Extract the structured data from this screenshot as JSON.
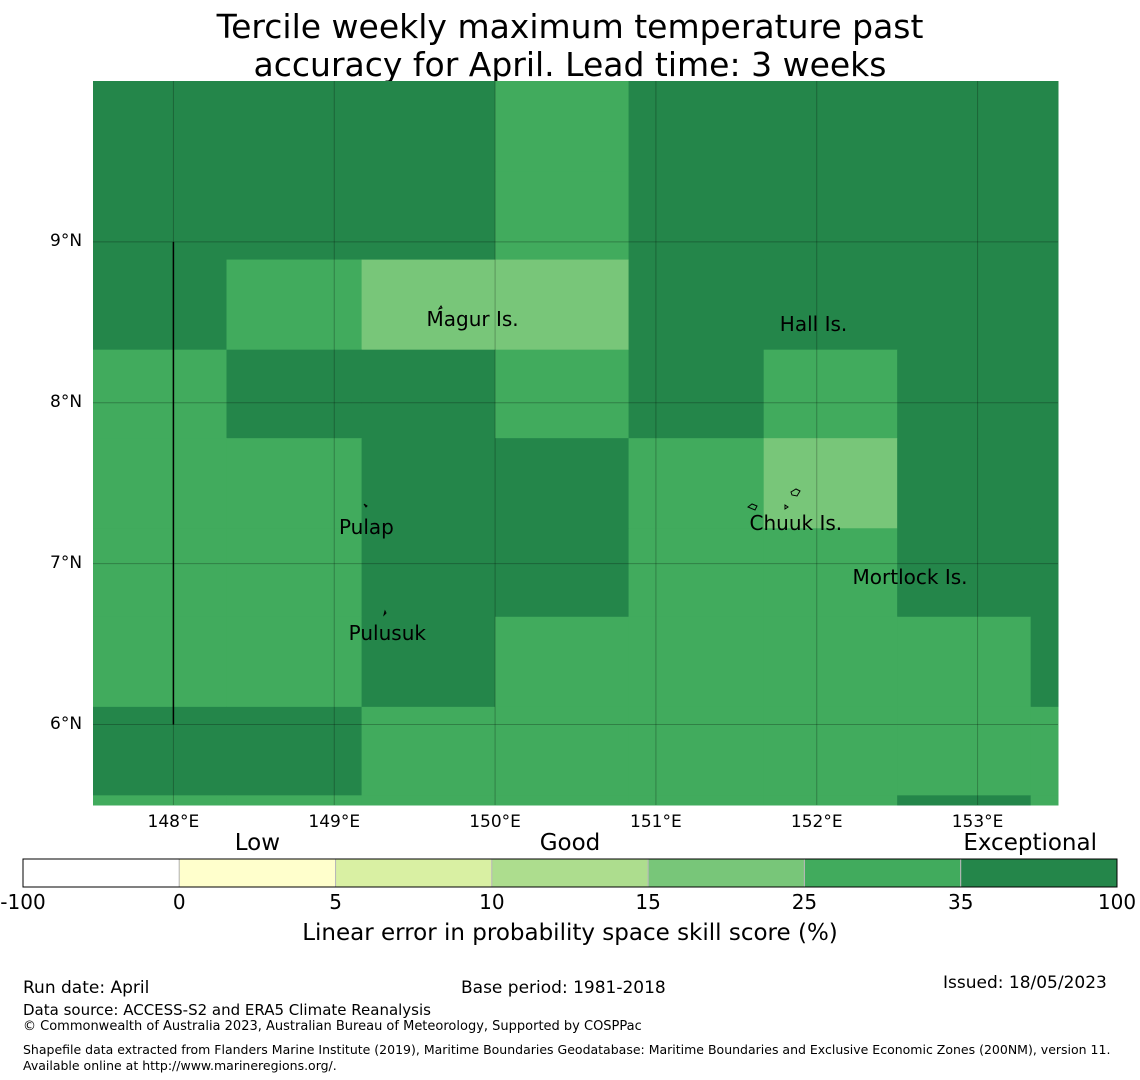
{
  "title": {
    "line1": "Tercile weekly maximum temperature past",
    "line2": "accuracy for April. Lead time: 3 weeks"
  },
  "colors": {
    "exceptional": "#24864a",
    "very_good": "#41ab5d",
    "good": "#78c679",
    "fair": "#addd8e",
    "low_good": "#d9f0a3",
    "low": "#ffffcc",
    "none": "#ffffff"
  },
  "map": {
    "lon_range": [
      147.5,
      153.5
    ],
    "lat_range": [
      5.5,
      10.0
    ],
    "lat_ticks": [
      {
        "value": 9,
        "label": "9°N"
      },
      {
        "value": 8,
        "label": "8°N"
      },
      {
        "value": 7,
        "label": "7°N"
      },
      {
        "value": 6,
        "label": "6°N"
      }
    ],
    "lon_ticks": [
      {
        "value": 148,
        "label": "148°E"
      },
      {
        "value": 149,
        "label": "149°E"
      },
      {
        "value": 150,
        "label": "150°E"
      },
      {
        "value": 151,
        "label": "151°E"
      },
      {
        "value": 152,
        "label": "152°E"
      },
      {
        "value": 153,
        "label": "153°E"
      }
    ],
    "cell_lon_edges": [
      147.5,
      148.33,
      149.17,
      150.0,
      150.83,
      151.67,
      152.5,
      153.33,
      153.5
    ],
    "cell_lat_edges": [
      10.0,
      9.44,
      8.89,
      8.33,
      7.78,
      7.22,
      6.67,
      6.11,
      5.56,
      5.5
    ],
    "skill_class_grid": [
      [
        "exceptional",
        "exceptional",
        "exceptional",
        "very_good",
        "exceptional",
        "exceptional",
        "exceptional",
        "exceptional"
      ],
      [
        "exceptional",
        "exceptional",
        "exceptional",
        "very_good",
        "exceptional",
        "exceptional",
        "exceptional",
        "exceptional"
      ],
      [
        "exceptional",
        "very_good",
        "good",
        "good",
        "exceptional",
        "exceptional",
        "exceptional",
        "exceptional"
      ],
      [
        "very_good",
        "exceptional",
        "exceptional",
        "very_good",
        "exceptional",
        "very_good",
        "exceptional",
        "exceptional"
      ],
      [
        "very_good",
        "very_good",
        "exceptional",
        "exceptional",
        "very_good",
        "good",
        "exceptional",
        "exceptional"
      ],
      [
        "very_good",
        "very_good",
        "exceptional",
        "exceptional",
        "very_good",
        "very_good",
        "exceptional",
        "exceptional"
      ],
      [
        "very_good",
        "very_good",
        "exceptional",
        "very_good",
        "very_good",
        "very_good",
        "very_good",
        "exceptional"
      ],
      [
        "exceptional",
        "exceptional",
        "very_good",
        "very_good",
        "very_good",
        "very_good",
        "very_good",
        "very_good"
      ],
      [
        "very_good",
        "very_good",
        "very_good",
        "very_good",
        "very_good",
        "very_good",
        "exceptional",
        "very_good"
      ]
    ],
    "places": [
      {
        "name": "Magur Is.",
        "lon": 149.86,
        "lat": 8.52
      },
      {
        "name": "Hall Is.",
        "lon": 151.98,
        "lat": 8.49
      },
      {
        "name": "Pulap",
        "lon": 149.2,
        "lat": 7.23
      },
      {
        "name": "Chuuk Is.",
        "lon": 151.87,
        "lat": 7.25
      },
      {
        "name": "Mortlock Is.",
        "lon": 152.58,
        "lat": 6.92
      },
      {
        "name": "Pulusuk",
        "lon": 149.33,
        "lat": 6.57
      }
    ],
    "boundary_line": {
      "lon": 148.0,
      "lat_from": 9.0,
      "lat_to": 6.0
    }
  },
  "colorbar": {
    "categories": [
      {
        "label": "Low",
        "position_value": 2
      },
      {
        "label": "Good",
        "position_value": 12.5
      },
      {
        "label": "Exceptional",
        "position_value": 100
      }
    ],
    "bins": [
      {
        "from": "-100",
        "to": "0",
        "color_key": "none"
      },
      {
        "from": "0",
        "to": "5",
        "color_key": "low"
      },
      {
        "from": "5",
        "to": "10",
        "color_key": "low_good"
      },
      {
        "from": "10",
        "to": "15",
        "color_key": "fair"
      },
      {
        "from": "15",
        "to": "25",
        "color_key": "good"
      },
      {
        "from": "25",
        "to": "35",
        "color_key": "very_good"
      },
      {
        "from": "35",
        "to": "100",
        "color_key": "exceptional"
      }
    ],
    "ticks": [
      "-100",
      "0",
      "5",
      "10",
      "15",
      "25",
      "35",
      "100"
    ],
    "label": "Linear error in probability space skill score (%)"
  },
  "footer": {
    "run_date": "Run date: April",
    "base_period": "Base period: 1981-2018",
    "issued": "Issued: 18/05/2023",
    "data_source": "Data source: ACCESS-S2 and ERA5 Climate Reanalysis",
    "copyright": "© Commonwealth of Australia 2023, Australian Bureau of Meteorology, Supported by COSPPac",
    "shapefile": "Shapefile data extracted from Flanders Marine Institute (2019), Maritime Boundaries Geodatabase: Maritime Boundaries and Exclusive Economic Zones (200NM), version 11. Available online at http://www.marineregions.org/."
  }
}
